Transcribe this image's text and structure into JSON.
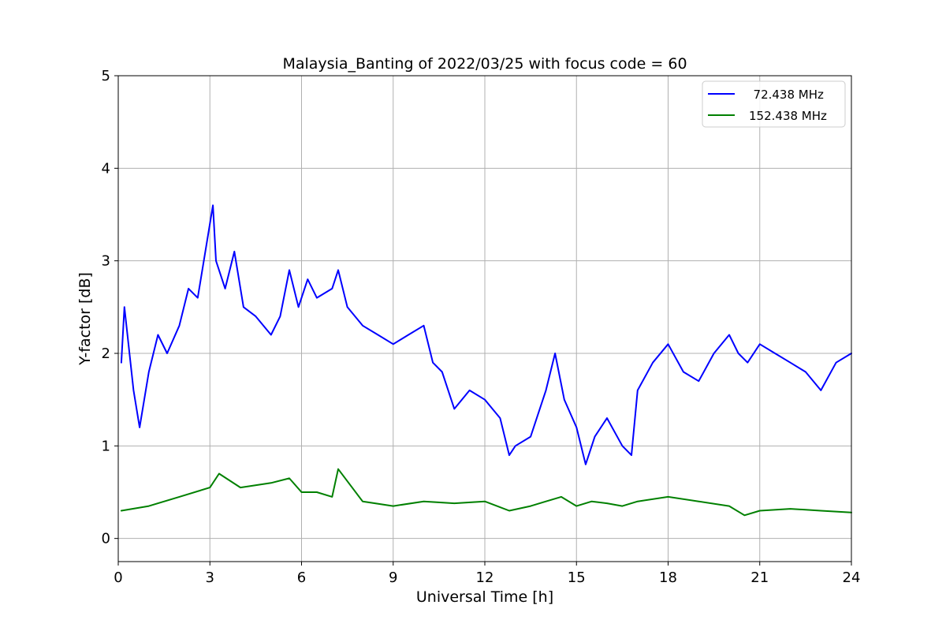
{
  "chart_data": {
    "type": "line",
    "title": "Malaysia_Banting of 2022/03/25 with focus code = 60",
    "xlabel": "Universal Time [h]",
    "ylabel": "Y-factor [dB]",
    "xlim": [
      0,
      24
    ],
    "ylim": [
      -0.25,
      5
    ],
    "xticks": [
      0,
      3,
      6,
      9,
      12,
      15,
      18,
      21,
      24
    ],
    "yticks": [
      0,
      1,
      2,
      3,
      4,
      5
    ],
    "grid": true,
    "legend_position": "top-right",
    "series": [
      {
        "name": "  72.438 MHz",
        "color": "#0000ff",
        "x": [
          0.1,
          0.2,
          0.5,
          0.7,
          1.0,
          1.3,
          1.6,
          2.0,
          2.3,
          2.6,
          2.9,
          3.1,
          3.2,
          3.5,
          3.8,
          4.1,
          4.5,
          5.0,
          5.3,
          5.6,
          5.9,
          6.2,
          6.5,
          7.0,
          7.2,
          7.5,
          8.0,
          8.5,
          9.0,
          9.5,
          10.0,
          10.3,
          10.6,
          11.0,
          11.5,
          12.0,
          12.5,
          12.8,
          13.0,
          13.5,
          14.0,
          14.3,
          14.6,
          15.0,
          15.3,
          15.6,
          16.0,
          16.5,
          16.8,
          17.0,
          17.5,
          18.0,
          18.5,
          19.0,
          19.5,
          20.0,
          20.3,
          20.6,
          21.0,
          21.5,
          22.0,
          22.5,
          23.0,
          23.5,
          24.0
        ],
        "y": [
          1.9,
          2.5,
          1.6,
          1.2,
          1.8,
          2.2,
          2.0,
          2.3,
          2.7,
          2.6,
          3.2,
          3.6,
          3.0,
          2.7,
          3.1,
          2.5,
          2.4,
          2.2,
          2.4,
          2.9,
          2.5,
          2.8,
          2.6,
          2.7,
          2.9,
          2.5,
          2.3,
          2.2,
          2.1,
          2.2,
          2.3,
          1.9,
          1.8,
          1.4,
          1.6,
          1.5,
          1.3,
          0.9,
          1.0,
          1.1,
          1.6,
          2.0,
          1.5,
          1.2,
          0.8,
          1.1,
          1.3,
          1.0,
          0.9,
          1.6,
          1.9,
          2.1,
          1.8,
          1.7,
          2.0,
          2.2,
          2.0,
          1.9,
          2.1,
          2.0,
          1.9,
          1.8,
          1.6,
          1.9,
          2.0
        ]
      },
      {
        "name": "152.438 MHz",
        "color": "#008000",
        "x": [
          0.1,
          1.0,
          2.0,
          3.0,
          3.3,
          4.0,
          5.0,
          5.6,
          6.0,
          6.5,
          7.0,
          7.2,
          8.0,
          9.0,
          10.0,
          11.0,
          12.0,
          12.8,
          13.5,
          14.0,
          14.5,
          15.0,
          15.5,
          16.0,
          16.5,
          17.0,
          18.0,
          19.0,
          20.0,
          20.5,
          21.0,
          22.0,
          23.0,
          24.0
        ],
        "y": [
          0.3,
          0.35,
          0.45,
          0.55,
          0.7,
          0.55,
          0.6,
          0.65,
          0.5,
          0.5,
          0.45,
          0.75,
          0.4,
          0.35,
          0.4,
          0.38,
          0.4,
          0.3,
          0.35,
          0.4,
          0.45,
          0.35,
          0.4,
          0.38,
          0.35,
          0.4,
          0.45,
          0.4,
          0.35,
          0.25,
          0.3,
          0.32,
          0.3,
          0.28
        ]
      }
    ]
  }
}
